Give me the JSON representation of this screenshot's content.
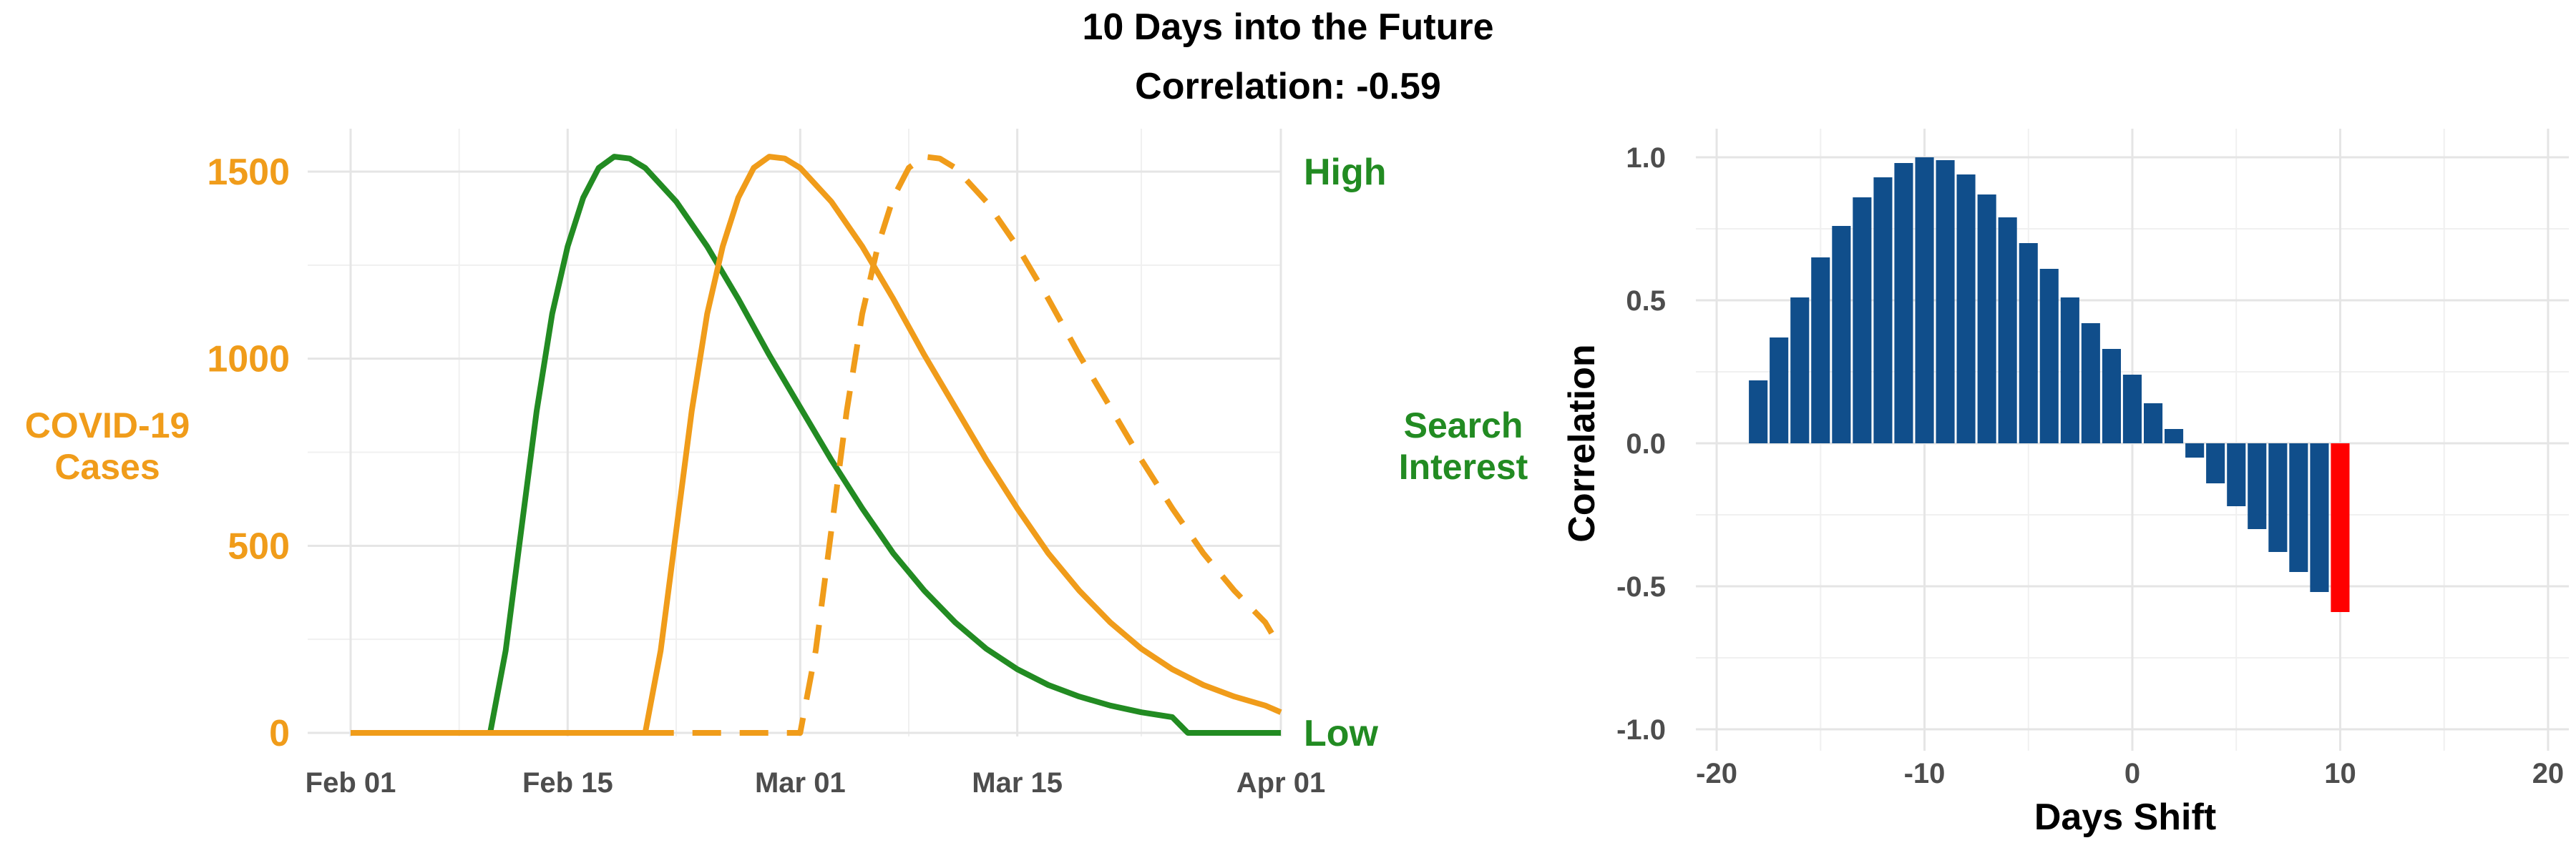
{
  "header": {
    "title": "10 Days into the Future",
    "subtitle": "Correlation: -0.59"
  },
  "colors": {
    "cases": "#f09c1a",
    "search": "#228b22",
    "bar": "#104e8b",
    "highlight": "#ff0000"
  },
  "chart_data": [
    {
      "type": "line",
      "x_ticks": [
        "Feb 01",
        "Feb 15",
        "Mar 01",
        "Mar 15",
        "Apr 01"
      ],
      "x_range": [
        "2020-02-01",
        "2020-04-01"
      ],
      "y_left_label_lines": [
        "COVID-19",
        "Cases"
      ],
      "y_left_ticks": [
        "0",
        "500",
        "1000",
        "1500"
      ],
      "y_left_range": [
        0,
        1500
      ],
      "y_right_label_lines": [
        "Search",
        "Interest"
      ],
      "y_right_ticks": [
        "Low",
        "High"
      ],
      "grid": true,
      "series": [
        {
          "role": "search-interest",
          "style": "solid",
          "color": "#228b22",
          "points": [
            [
              "2020-02-01",
              0
            ],
            [
              "2020-02-10",
              0
            ],
            [
              "2020-02-11",
              220
            ],
            [
              "2020-02-12",
              540
            ],
            [
              "2020-02-13",
              860
            ],
            [
              "2020-02-14",
              1120
            ],
            [
              "2020-02-15",
              1300
            ],
            [
              "2020-02-16",
              1430
            ],
            [
              "2020-02-17",
              1510
            ],
            [
              "2020-02-18",
              1540
            ],
            [
              "2020-02-19",
              1535
            ],
            [
              "2020-02-20",
              1510
            ],
            [
              "2020-02-22",
              1420
            ],
            [
              "2020-02-24",
              1300
            ],
            [
              "2020-02-26",
              1160
            ],
            [
              "2020-02-28",
              1010
            ],
            [
              "2020-03-01",
              870
            ],
            [
              "2020-03-03",
              730
            ],
            [
              "2020-03-05",
              600
            ],
            [
              "2020-03-07",
              480
            ],
            [
              "2020-03-09",
              380
            ],
            [
              "2020-03-11",
              295
            ],
            [
              "2020-03-13",
              225
            ],
            [
              "2020-03-15",
              170
            ],
            [
              "2020-03-17",
              128
            ],
            [
              "2020-03-19",
              97
            ],
            [
              "2020-03-21",
              73
            ],
            [
              "2020-03-23",
              55
            ],
            [
              "2020-03-25",
              42
            ],
            [
              "2020-03-26",
              0
            ],
            [
              "2020-04-01",
              0
            ]
          ]
        },
        {
          "role": "cases",
          "style": "solid",
          "color": "#f09c1a",
          "points": [
            [
              "2020-02-01",
              0
            ],
            [
              "2020-02-20",
              0
            ],
            [
              "2020-02-21",
              220
            ],
            [
              "2020-02-22",
              540
            ],
            [
              "2020-02-23",
              860
            ],
            [
              "2020-02-24",
              1120
            ],
            [
              "2020-02-25",
              1300
            ],
            [
              "2020-02-26",
              1430
            ],
            [
              "2020-02-27",
              1510
            ],
            [
              "2020-02-28",
              1540
            ],
            [
              "2020-02-29",
              1535
            ],
            [
              "2020-03-01",
              1510
            ],
            [
              "2020-03-03",
              1420
            ],
            [
              "2020-03-05",
              1300
            ],
            [
              "2020-03-07",
              1160
            ],
            [
              "2020-03-09",
              1010
            ],
            [
              "2020-03-11",
              870
            ],
            [
              "2020-03-13",
              730
            ],
            [
              "2020-03-15",
              600
            ],
            [
              "2020-03-17",
              480
            ],
            [
              "2020-03-19",
              380
            ],
            [
              "2020-03-21",
              295
            ],
            [
              "2020-03-23",
              225
            ],
            [
              "2020-03-25",
              170
            ],
            [
              "2020-03-27",
              128
            ],
            [
              "2020-03-29",
              97
            ],
            [
              "2020-03-31",
              73
            ],
            [
              "2020-04-01",
              55
            ]
          ]
        },
        {
          "role": "cases-shifted",
          "style": "dashed",
          "color": "#f09c1a",
          "points": [
            [
              "2020-02-20",
              0
            ],
            [
              "2020-03-01",
              0
            ],
            [
              "2020-03-02",
              220
            ],
            [
              "2020-03-03",
              540
            ],
            [
              "2020-03-04",
              860
            ],
            [
              "2020-03-05",
              1120
            ],
            [
              "2020-03-06",
              1300
            ],
            [
              "2020-03-07",
              1430
            ],
            [
              "2020-03-08",
              1510
            ],
            [
              "2020-03-09",
              1540
            ],
            [
              "2020-03-10",
              1535
            ],
            [
              "2020-03-11",
              1510
            ],
            [
              "2020-03-13",
              1420
            ],
            [
              "2020-03-15",
              1300
            ],
            [
              "2020-03-17",
              1160
            ],
            [
              "2020-03-19",
              1010
            ],
            [
              "2020-03-21",
              870
            ],
            [
              "2020-03-23",
              730
            ],
            [
              "2020-03-25",
              600
            ],
            [
              "2020-03-27",
              480
            ],
            [
              "2020-03-29",
              380
            ],
            [
              "2020-03-31",
              295
            ],
            [
              "2020-04-01",
              225
            ]
          ]
        }
      ]
    },
    {
      "type": "bar",
      "xlabel": "Days Shift",
      "ylabel": "Correlation",
      "x_ticks": [
        "-20",
        "-10",
        "0",
        "10",
        "20"
      ],
      "y_ticks": [
        "-1.0",
        "-0.5",
        "0.0",
        "0.5",
        "1.0"
      ],
      "xlim": [
        -21,
        21
      ],
      "ylim": [
        -1.0,
        1.0
      ],
      "grid": true,
      "highlight_shift": 10,
      "x": [
        -18,
        -17,
        -16,
        -15,
        -14,
        -13,
        -12,
        -11,
        -10,
        -9,
        -8,
        -7,
        -6,
        -5,
        -4,
        -3,
        -2,
        -1,
        0,
        1,
        2,
        3,
        4,
        5,
        6,
        7,
        8,
        9,
        10
      ],
      "values": [
        0.22,
        0.37,
        0.51,
        0.65,
        0.76,
        0.86,
        0.93,
        0.98,
        1.0,
        0.99,
        0.94,
        0.87,
        0.79,
        0.7,
        0.61,
        0.51,
        0.42,
        0.33,
        0.24,
        0.14,
        0.05,
        -0.05,
        -0.14,
        -0.22,
        -0.3,
        -0.38,
        -0.45,
        -0.52,
        -0.59
      ]
    }
  ]
}
